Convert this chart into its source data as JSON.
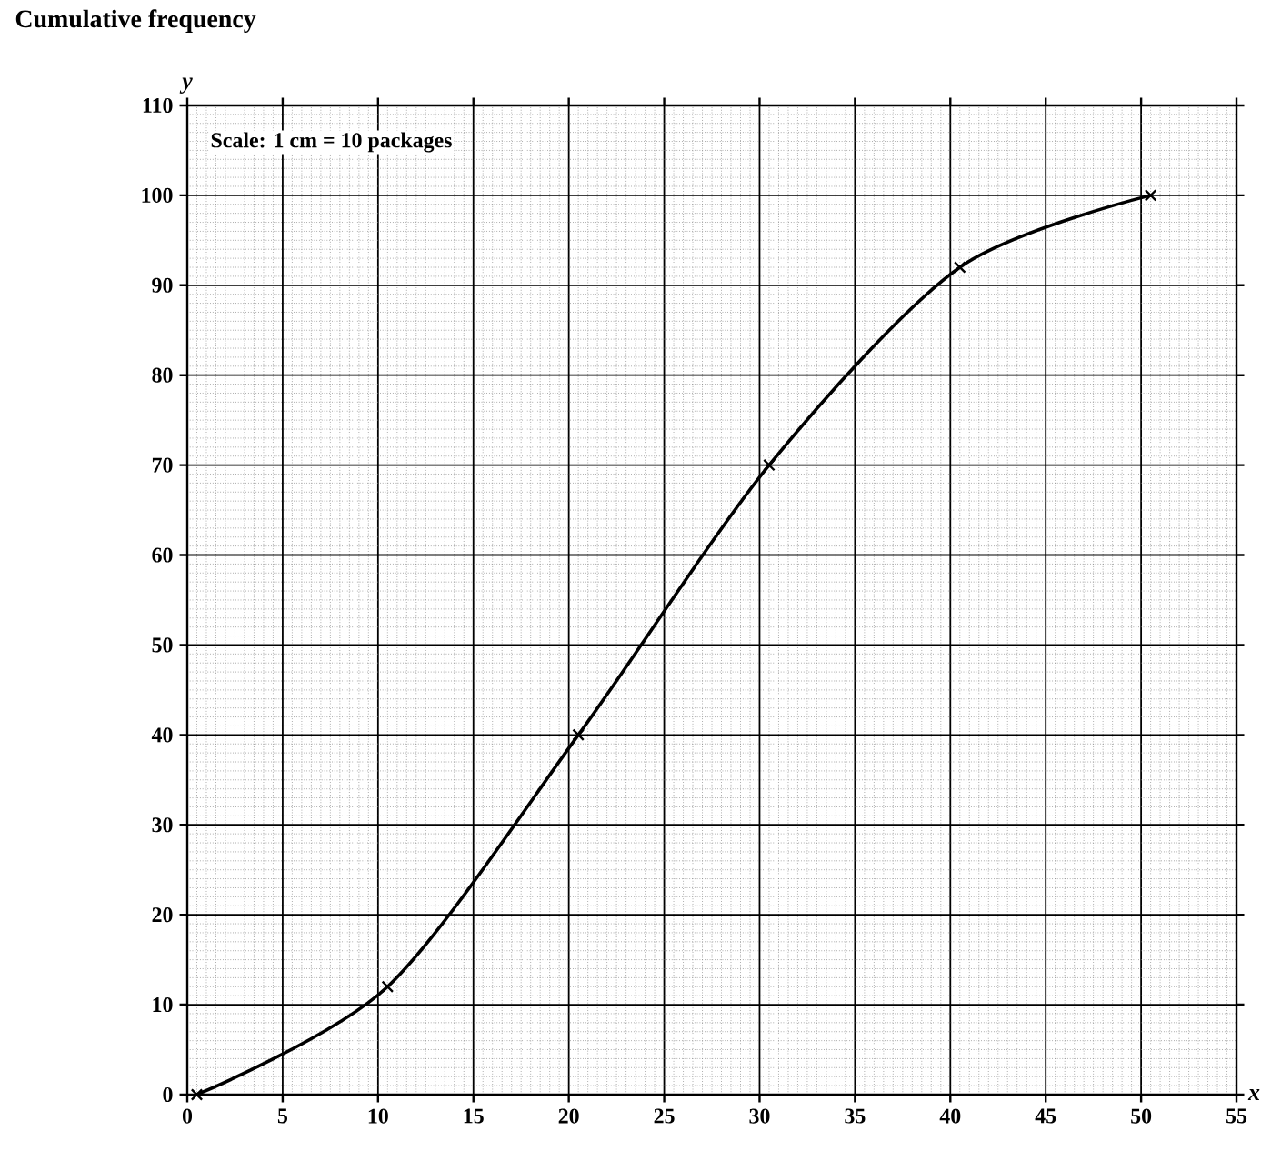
{
  "chart_data": {
    "type": "line",
    "title": "Cumulative frequency",
    "xlabel": "x",
    "ylabel": "y",
    "annotations": [
      "Scale: 1 cm = 10 packages"
    ],
    "x": [
      0.5,
      10.5,
      20.5,
      30.5,
      40.5,
      50.5
    ],
    "series": [
      {
        "color": "#000000",
        "values": [
          0,
          12,
          40,
          70,
          92,
          100
        ]
      }
    ],
    "xlim": [
      0,
      55
    ],
    "ylim": [
      0,
      110
    ],
    "xticks": [
      0,
      5,
      10,
      15,
      20,
      25,
      30,
      35,
      40,
      45,
      50,
      55
    ],
    "yticks": [
      0,
      10,
      20,
      30,
      40,
      50,
      60,
      70,
      80,
      90,
      100,
      110
    ],
    "grid": true,
    "marker": "cross",
    "line_style": "solid"
  }
}
